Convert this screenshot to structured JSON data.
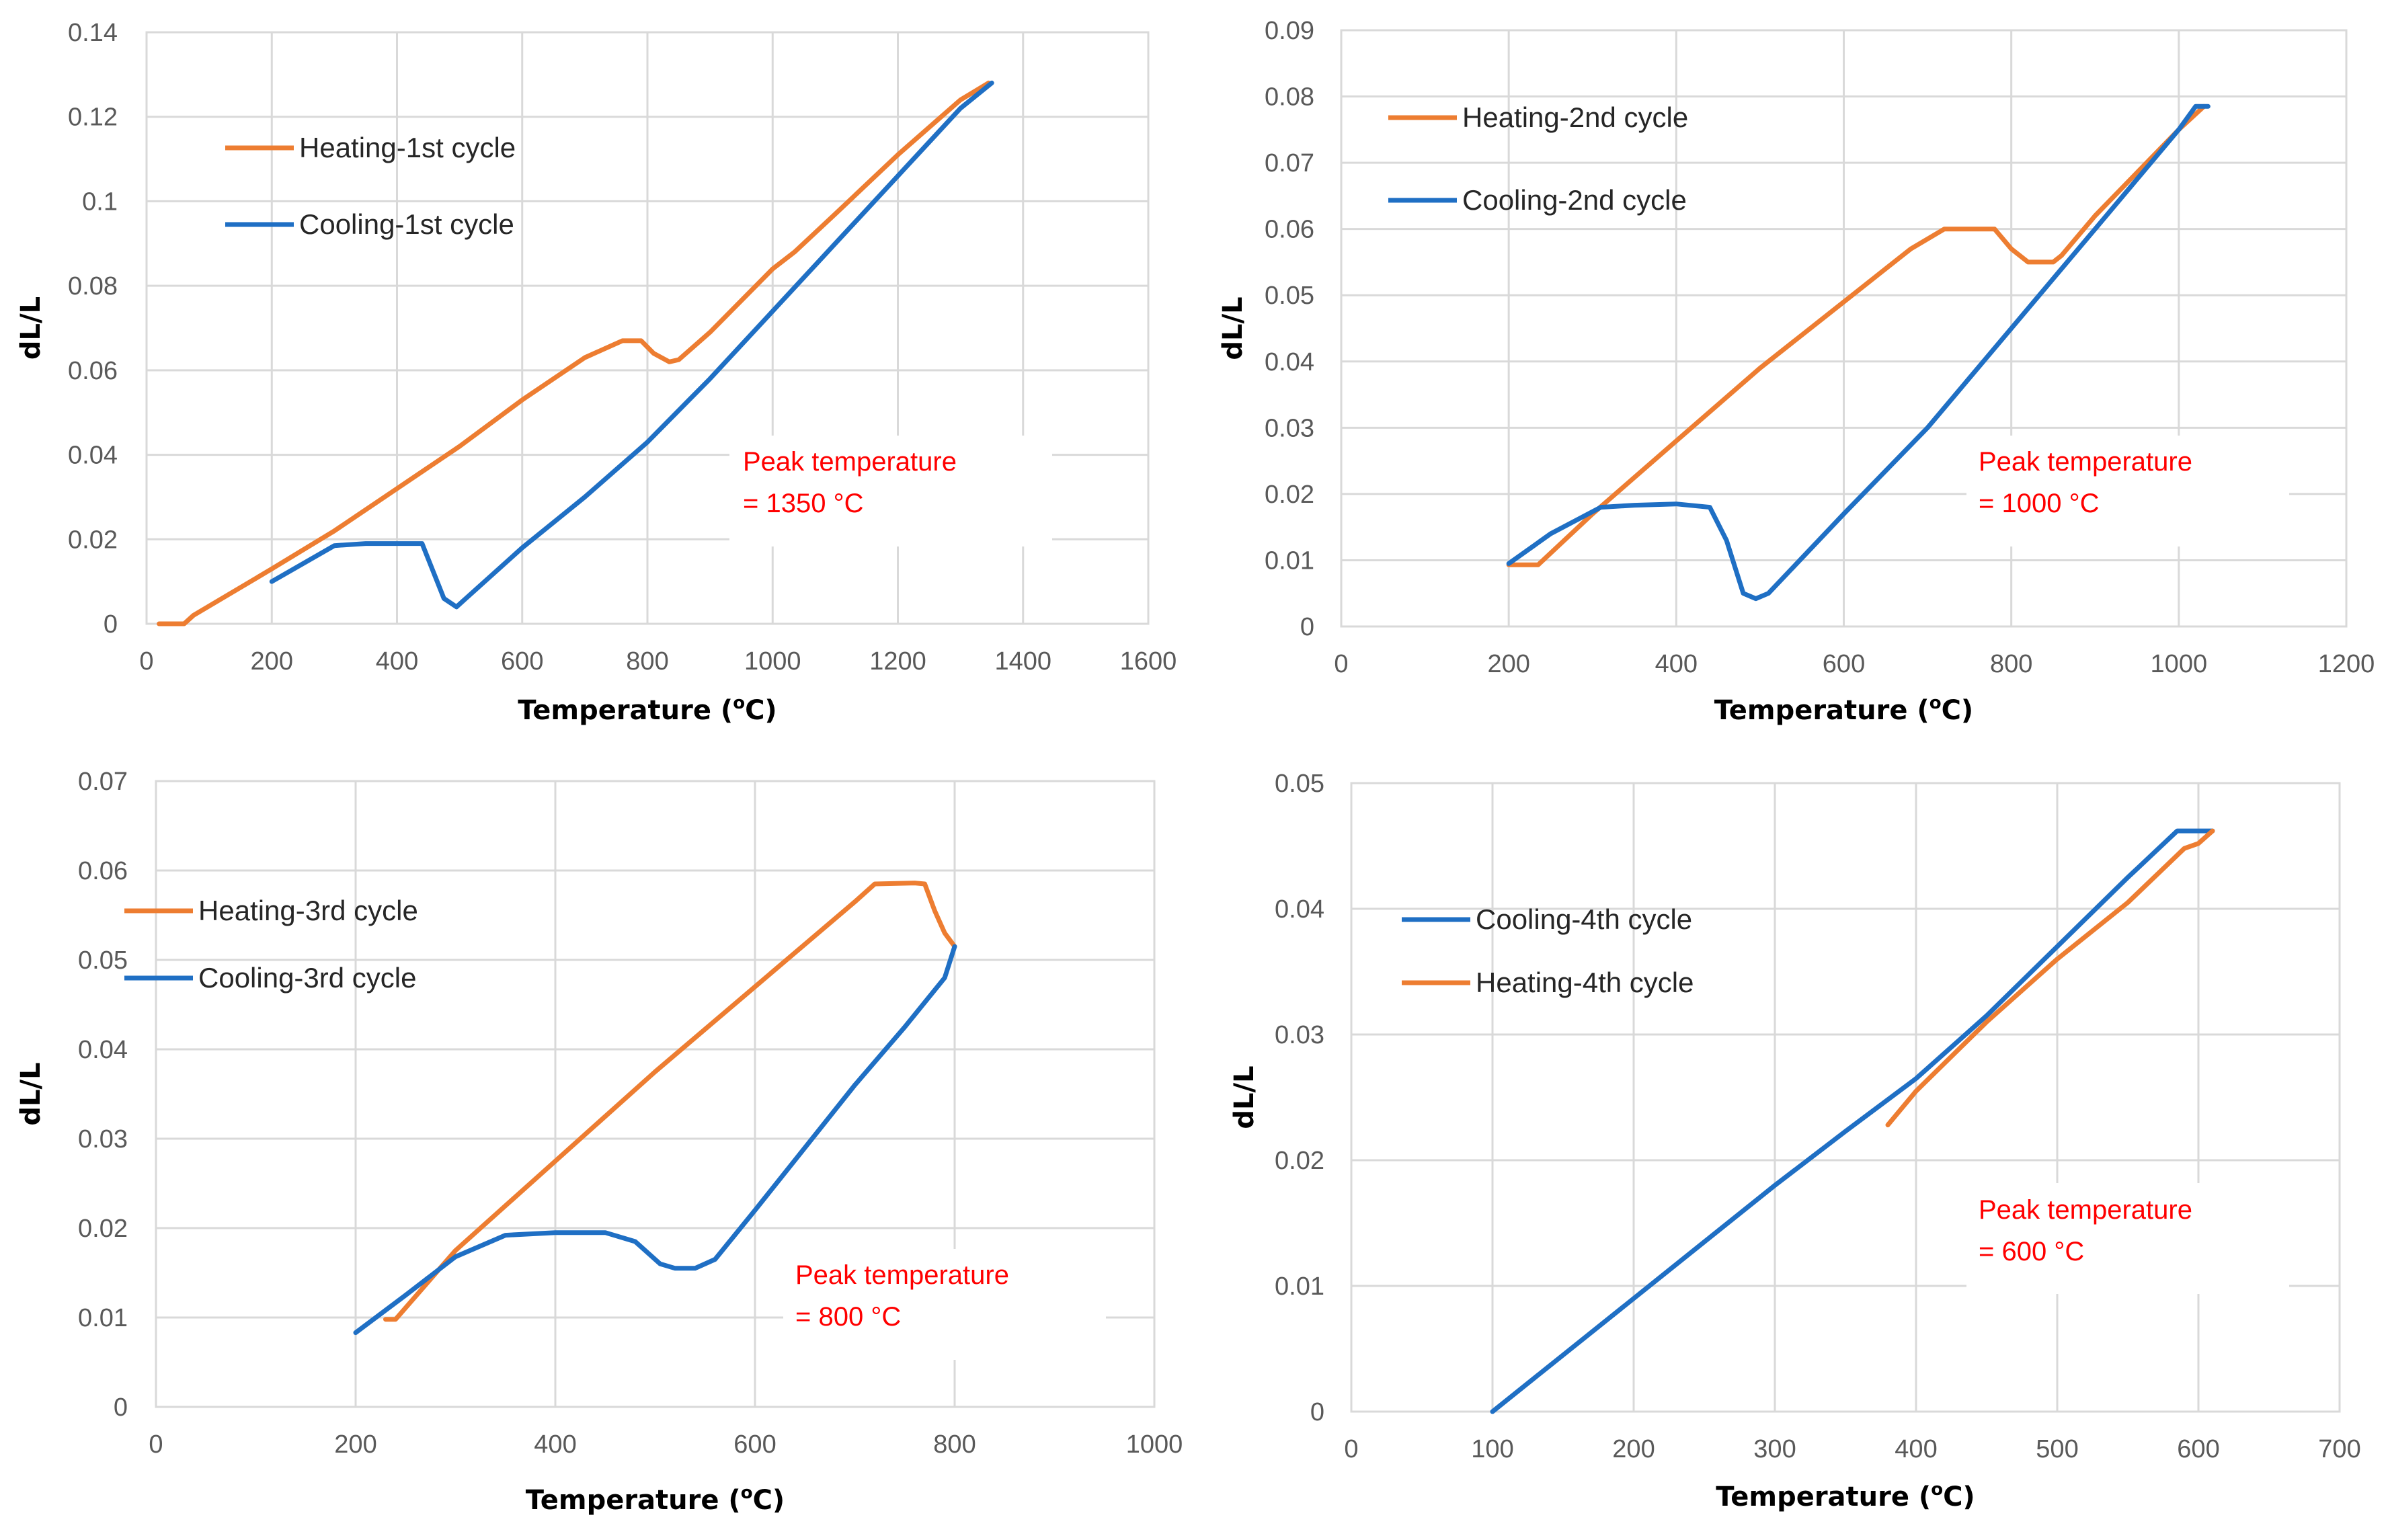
{
  "colors": {
    "heating": "#ed7d31",
    "cooling": "#1f6fc4",
    "annotation": "#ff0000"
  },
  "chart_data": [
    {
      "type": "line",
      "xlabel": "Temperature (",
      "xlabel_sup": "o",
      "xlabel_end": "C)",
      "ylabel": "dL/L",
      "xlim": [
        0,
        1600
      ],
      "ylim": [
        0,
        0.14
      ],
      "xticks": [
        "0",
        "200",
        "400",
        "600",
        "800",
        "1000",
        "1200",
        "1400",
        "1600"
      ],
      "yticks": [
        "0",
        "0.02",
        "0.04",
        "0.06",
        "0.08",
        "0.1",
        "0.12",
        "0.14"
      ],
      "legend_position": "top-left",
      "annotation": [
        "Peak temperature",
        "= 1350 °C"
      ],
      "series": [
        {
          "name": "Heating-1st cycle",
          "color": "heating",
          "x": [
            20,
            60,
            75,
            200,
            300,
            400,
            500,
            600,
            700,
            760,
            790,
            810,
            835,
            850,
            900,
            1000,
            1035,
            1100,
            1200,
            1300,
            1345
          ],
          "y": [
            0,
            0,
            0.002,
            0.013,
            0.022,
            0.032,
            0.042,
            0.053,
            0.063,
            0.067,
            0.067,
            0.064,
            0.062,
            0.0625,
            0.069,
            0.084,
            0.088,
            0.097,
            0.111,
            0.124,
            0.128
          ]
        },
        {
          "name": "Cooling-1st cycle",
          "color": "cooling",
          "x": [
            1350,
            1300,
            1200,
            1100,
            1000,
            900,
            800,
            700,
            600,
            510,
            495,
            475,
            440,
            400,
            350,
            300,
            200
          ],
          "y": [
            0.128,
            0.122,
            0.106,
            0.09,
            0.074,
            0.058,
            0.043,
            0.03,
            0.018,
            0.006,
            0.004,
            0.006,
            0.019,
            0.019,
            0.019,
            0.0185,
            0.01
          ]
        }
      ]
    },
    {
      "type": "line",
      "xlabel": "Temperature (",
      "xlabel_sup": "o",
      "xlabel_end": "C)",
      "ylabel": "dL/L",
      "xlim": [
        0,
        1200
      ],
      "ylim": [
        0,
        0.09
      ],
      "xticks": [
        "0",
        "200",
        "400",
        "600",
        "800",
        "1000",
        "1200"
      ],
      "yticks": [
        "0",
        "0.01",
        "0.02",
        "0.03",
        "0.04",
        "0.05",
        "0.06",
        "0.07",
        "0.08",
        "0.09"
      ],
      "legend_position": "top-left",
      "annotation": [
        "Peak temperature",
        "= 1000 °C"
      ],
      "series": [
        {
          "name": "Heating-2nd cycle",
          "color": "heating",
          "x": [
            200,
            235,
            300,
            400,
            500,
            600,
            680,
            720,
            760,
            780,
            800,
            820,
            850,
            860,
            900,
            1000,
            1030
          ],
          "y": [
            0.0093,
            0.0093,
            0.017,
            0.028,
            0.039,
            0.049,
            0.057,
            0.06,
            0.06,
            0.06,
            0.057,
            0.055,
            0.055,
            0.056,
            0.062,
            0.075,
            0.0785
          ]
        },
        {
          "name": "Cooling-2nd cycle",
          "color": "cooling",
          "x": [
            1035,
            1020,
            1000,
            900,
            800,
            700,
            600,
            510,
            495,
            480,
            460,
            440,
            400,
            350,
            310,
            250,
            200
          ],
          "y": [
            0.0785,
            0.0785,
            0.075,
            0.06,
            0.045,
            0.03,
            0.017,
            0.005,
            0.0042,
            0.005,
            0.013,
            0.018,
            0.0185,
            0.0183,
            0.018,
            0.014,
            0.0095
          ]
        }
      ]
    },
    {
      "type": "line",
      "xlabel": "Temperature (",
      "xlabel_sup": "o",
      "xlabel_end": "C)",
      "ylabel": "dL/L",
      "xlim": [
        0,
        1000
      ],
      "ylim": [
        0,
        0.07
      ],
      "xticks": [
        "0",
        "200",
        "400",
        "600",
        "800",
        "1000"
      ],
      "yticks": [
        "0",
        "0.01",
        "0.02",
        "0.03",
        "0.04",
        "0.05",
        "0.06",
        "0.07"
      ],
      "legend_position": "top-left",
      "annotation": [
        "Peak temperature",
        "= 800 °C"
      ],
      "series": [
        {
          "name": "Heating-3rd cycle",
          "color": "heating",
          "x": [
            230,
            240,
            300,
            400,
            500,
            600,
            700,
            720,
            760,
            770,
            780,
            790,
            800
          ],
          "y": [
            0.0098,
            0.0098,
            0.0175,
            0.0275,
            0.0375,
            0.047,
            0.0565,
            0.0585,
            0.0586,
            0.0585,
            0.0555,
            0.053,
            0.0515
          ]
        },
        {
          "name": "Cooling-3rd cycle",
          "color": "cooling",
          "x": [
            800,
            790,
            750,
            700,
            650,
            600,
            560,
            540,
            520,
            505,
            480,
            450,
            400,
            350,
            300,
            250,
            200
          ],
          "y": [
            0.0515,
            0.048,
            0.0425,
            0.036,
            0.029,
            0.022,
            0.0165,
            0.0155,
            0.0155,
            0.016,
            0.0185,
            0.0195,
            0.0195,
            0.0192,
            0.0168,
            0.0125,
            0.0083
          ]
        }
      ]
    },
    {
      "type": "line",
      "xlabel": "Temperature (",
      "xlabel_sup": "o",
      "xlabel_end": "C)",
      "ylabel": "dL/L",
      "xlim": [
        0,
        700
      ],
      "ylim": [
        0,
        0.05
      ],
      "xticks": [
        "0",
        "100",
        "200",
        "300",
        "400",
        "500",
        "600",
        "700"
      ],
      "yticks": [
        "0",
        "0.01",
        "0.02",
        "0.03",
        "0.04",
        "0.05"
      ],
      "legend_position": "top-left",
      "annotation": [
        "Peak temperature",
        "= 600 °C"
      ],
      "series": [
        {
          "name": "Cooling-4th cycle",
          "color": "cooling",
          "x": [
            100,
            150,
            200,
            250,
            300,
            350,
            400,
            450,
            500,
            550,
            585,
            595,
            610
          ],
          "y": [
            0,
            0.0045,
            0.009,
            0.0135,
            0.018,
            0.0223,
            0.0265,
            0.0315,
            0.037,
            0.0425,
            0.0462,
            0.0462,
            0.0462
          ]
        },
        {
          "name": "Heating-4th cycle",
          "color": "heating",
          "x": [
            380,
            400,
            450,
            500,
            550,
            590,
            600,
            610
          ],
          "y": [
            0.0228,
            0.0255,
            0.031,
            0.036,
            0.0405,
            0.0448,
            0.0452,
            0.0462
          ]
        }
      ]
    }
  ]
}
